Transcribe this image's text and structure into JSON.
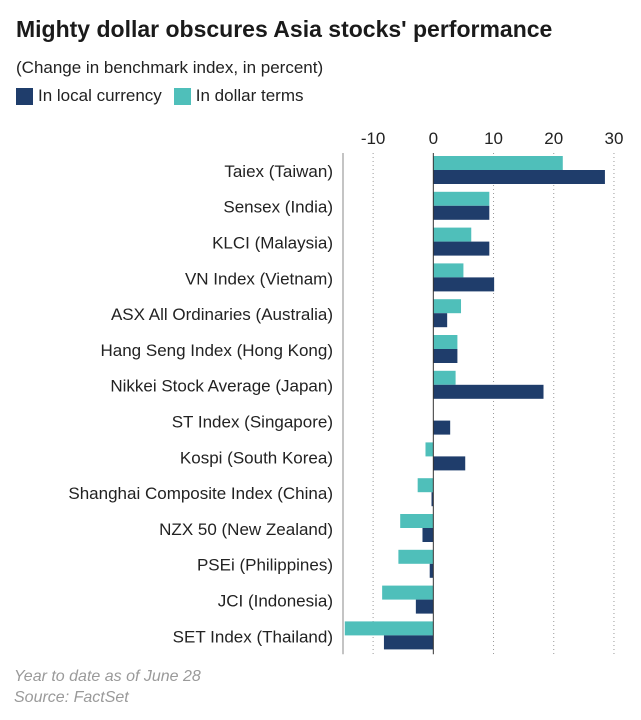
{
  "chart_data": {
    "type": "bar",
    "orientation": "horizontal",
    "title": "Mighty dollar obscures Asia stocks' performance",
    "subtitle": "(Change in benchmark index, in percent)",
    "categories": [
      "Taiex (Taiwan)",
      "Sensex (India)",
      "KLCI (Malaysia)",
      "VN Index (Vietnam)",
      "ASX All Ordinaries (Australia)",
      "Hang Seng Index (Hong Kong)",
      "Nikkei Stock Average (Japan)",
      "ST Index (Singapore)",
      "Kospi (South Korea)",
      "Shanghai Composite Index (China)",
      "NZX 50 (New Zealand)",
      "PSEi (Philippines)",
      "JCI (Indonesia)",
      "SET Index (Thailand)"
    ],
    "series": [
      {
        "name": "In dollar terms",
        "color": "#4fbfba",
        "values": [
          21.5,
          9.3,
          6.3,
          5.0,
          4.6,
          4.0,
          3.7,
          0.0,
          -1.3,
          -2.6,
          -5.5,
          -5.8,
          -8.5,
          -14.7
        ]
      },
      {
        "name": "In local currency",
        "color": "#1f3d6b",
        "values": [
          28.5,
          9.3,
          9.3,
          10.1,
          2.3,
          4.0,
          18.3,
          2.8,
          5.3,
          -0.3,
          -1.8,
          -0.6,
          -2.9,
          -8.2
        ]
      }
    ],
    "xlim": [
      -15,
      32
    ],
    "xticks": [
      -10,
      0,
      10,
      20,
      30
    ],
    "xtick_labels": [
      "-10",
      "0",
      "10",
      "20",
      "30"
    ],
    "grid": true
  },
  "legend": {
    "local": "In local currency",
    "dollar": "In dollar terms"
  },
  "footnotes": {
    "date": "Year to date as of June 28",
    "source": "Source: FactSet"
  },
  "colors": {
    "dollar": "#4fbfba",
    "local": "#1f3d6b",
    "grid": "#9a9a9a",
    "axis": "#555555"
  }
}
